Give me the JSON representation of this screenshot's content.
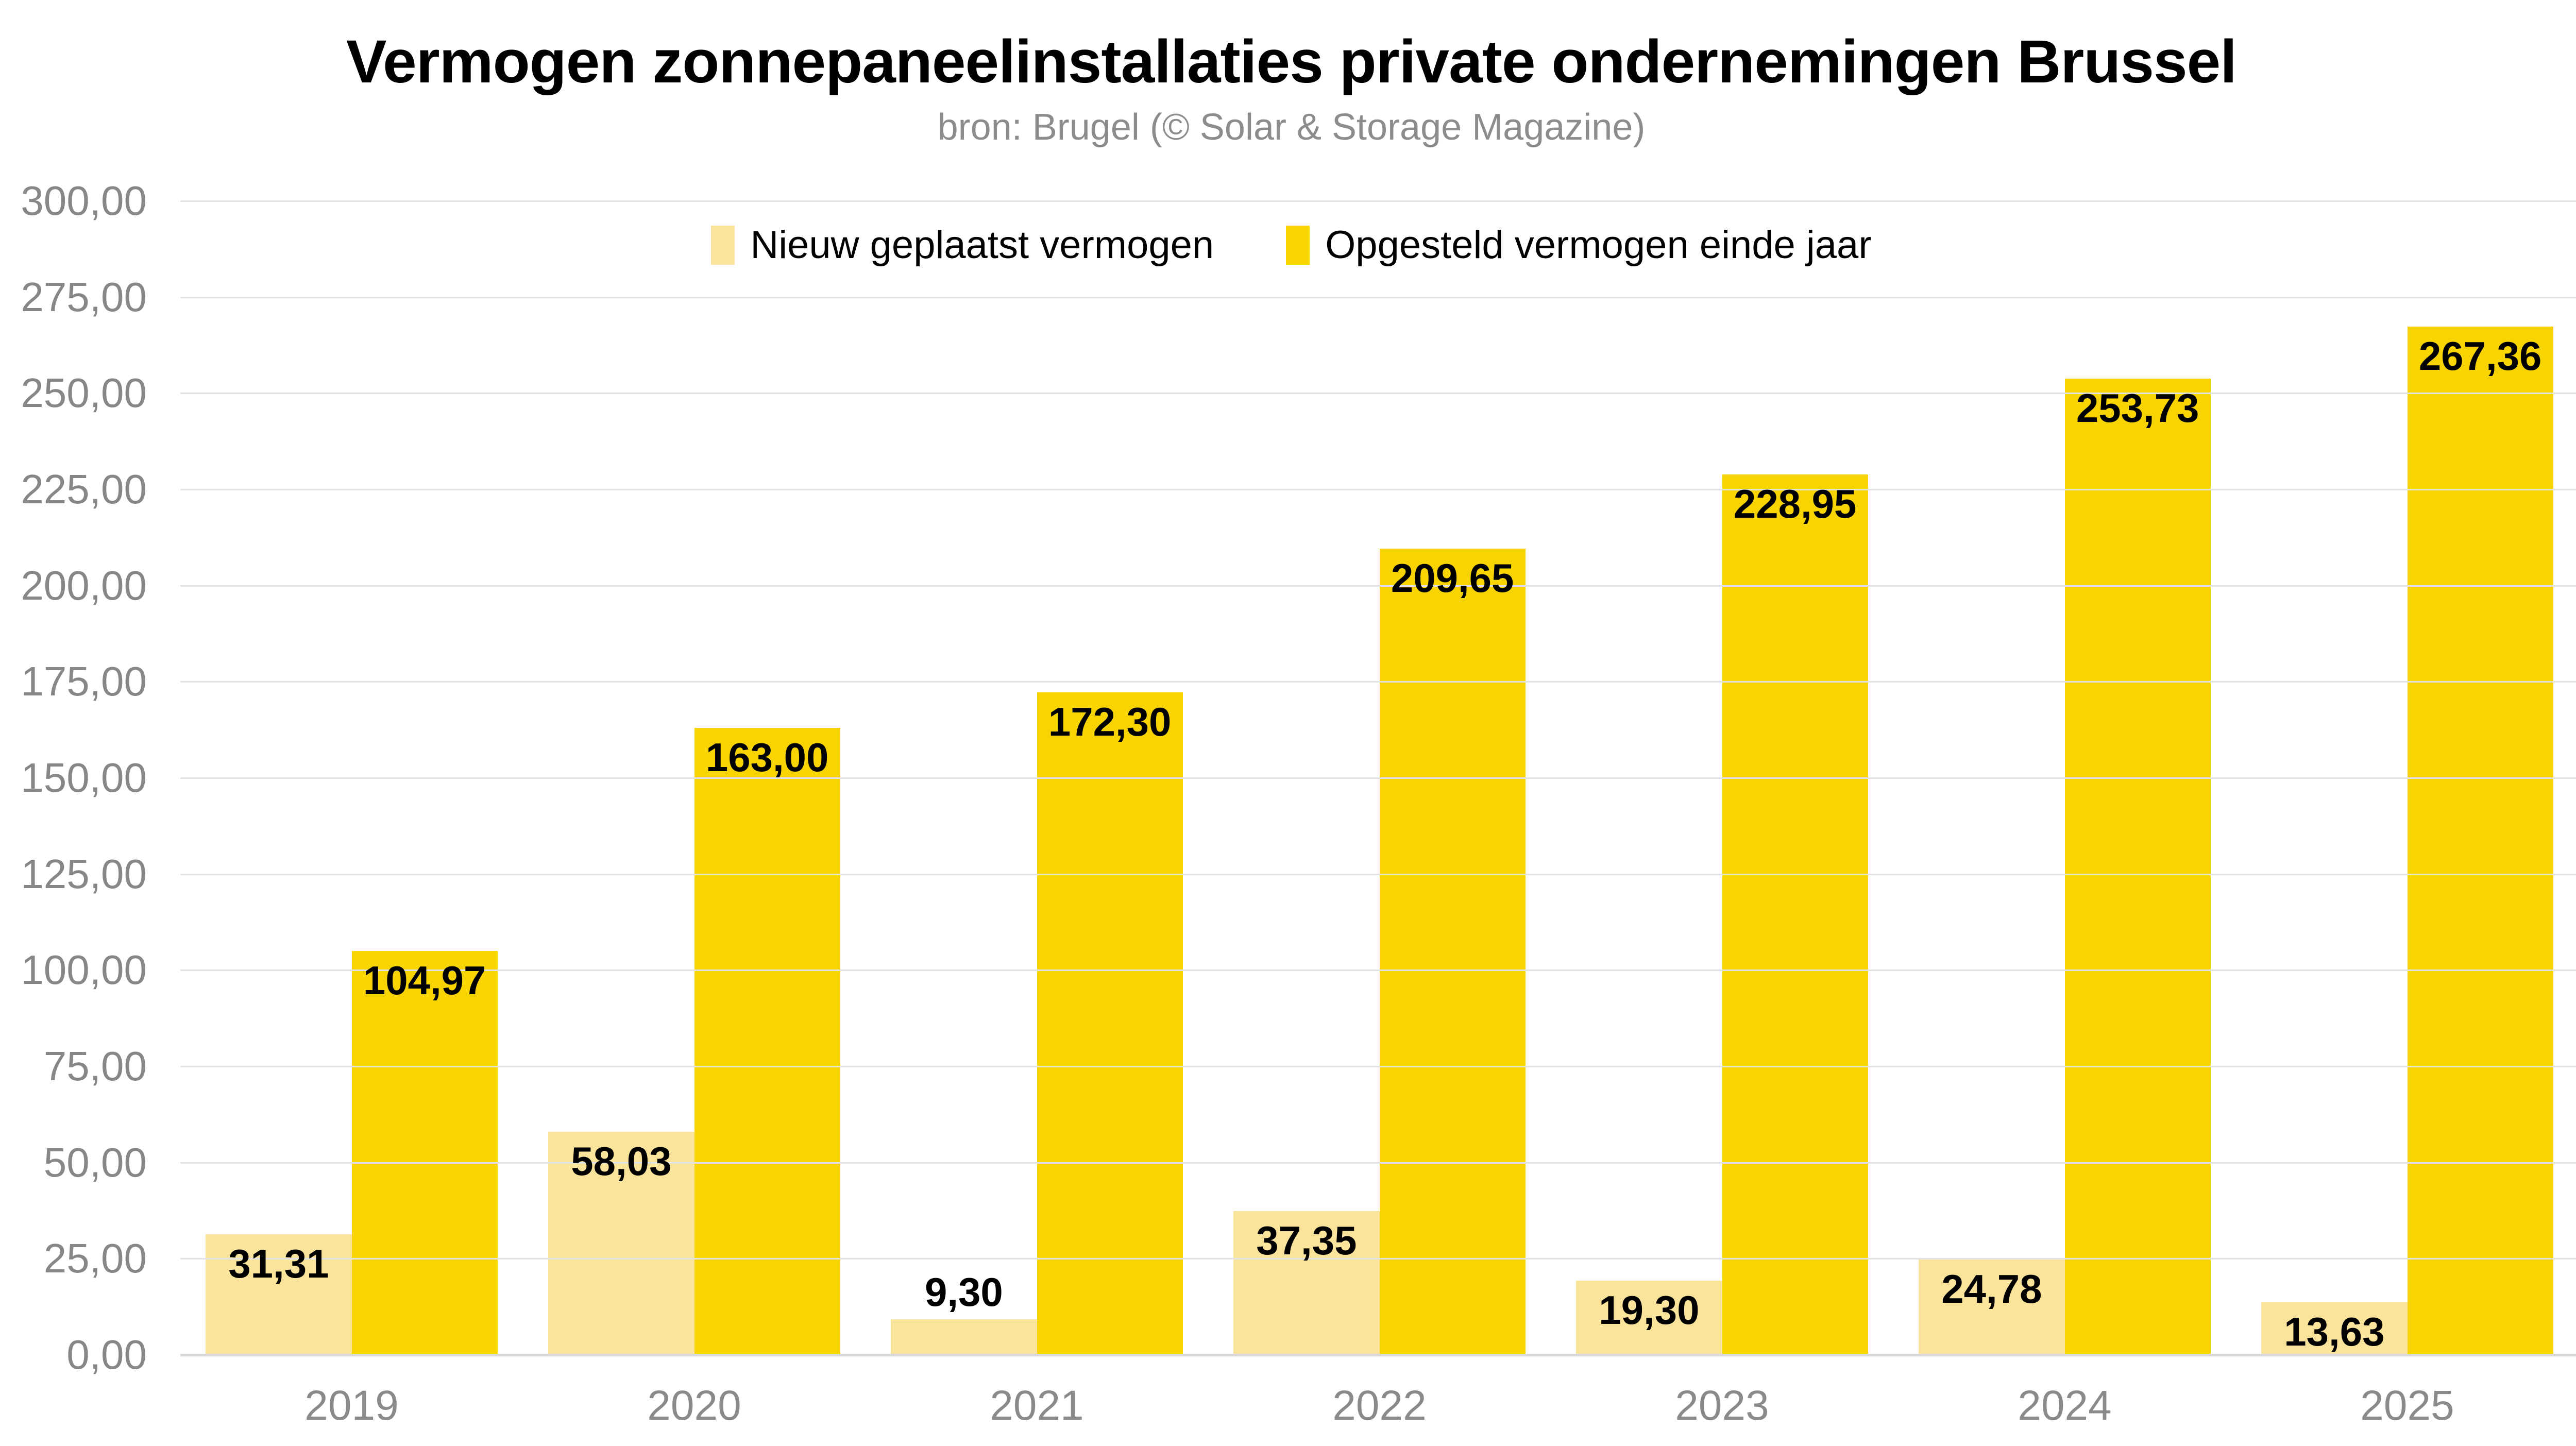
{
  "title": "Vermogen zonnepaneelinstallaties private ondernemingen Brussel",
  "subtitle": "bron: Brugel (© Solar & Storage Magazine)",
  "colors": {
    "background": "#ffffff",
    "series_new": "#fae49b",
    "series_total": "#f9d403",
    "gridline": "#e2e2e2",
    "axis_baseline": "#d9d9d9",
    "tick_text": "#878787",
    "subtitle_text": "#8c8c8c",
    "title_text": "#000000",
    "value_label_text": "#000000"
  },
  "chart_data": {
    "type": "bar",
    "title": "Vermogen zonnepaneelinstallaties private ondernemingen Brussel",
    "subtitle": "bron: Brugel (© Solar & Storage Magazine)",
    "categories": [
      "2019",
      "2020",
      "2021",
      "2022",
      "2023",
      "2024",
      "2025"
    ],
    "series": [
      {
        "name": "Nieuw geplaatst vermogen",
        "color": "#fae49b",
        "values": [
          31.31,
          58.03,
          9.3,
          37.35,
          19.3,
          24.78,
          13.63
        ],
        "value_labels": [
          "31,31",
          "58,03",
          "9,30",
          "37,35",
          "19,30",
          "24,78",
          "13,63"
        ]
      },
      {
        "name": "Opgesteld vermogen einde jaar",
        "color": "#f9d403",
        "values": [
          104.97,
          163.0,
          172.3,
          209.65,
          228.95,
          253.73,
          267.36
        ],
        "value_labels": [
          "104,97",
          "163,00",
          "172,30",
          "209,65",
          "228,95",
          "253,73",
          "267,36"
        ]
      }
    ],
    "xlabel": "",
    "ylabel": "",
    "ylim": [
      0,
      300
    ],
    "ytick_step": 25,
    "ytick_labels": [
      "0,00",
      "25,00",
      "50,00",
      "75,00",
      "100,00",
      "125,00",
      "150,00",
      "175,00",
      "200,00",
      "225,00",
      "250,00",
      "275,00",
      "300,00"
    ],
    "grid": true,
    "legend_position": "top-center",
    "decimal_separator": ","
  }
}
